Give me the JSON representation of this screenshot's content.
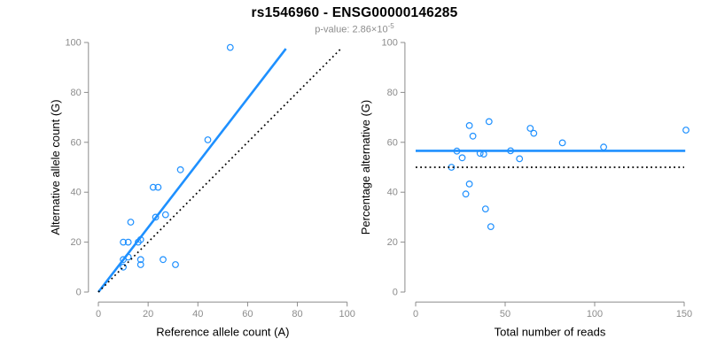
{
  "header": {
    "title": "rs1546960 - ENSG00000146285",
    "pvalue_label": "p-value:",
    "pvalue_mantissa": "2.86",
    "pvalue_times": "×10",
    "pvalue_exponent": "-5"
  },
  "colors": {
    "point_blue": "#1E90FF",
    "line_blue": "#1E90FF",
    "dotted_black": "#000000",
    "axis_gray": "#8C8C8C",
    "tick_label_gray": "#8C8C8C",
    "axis_title_black": "#000000"
  },
  "chart_data": [
    {
      "type": "scatter",
      "panel": "left",
      "xlabel": "Reference allele count (A)",
      "ylabel": "Alternative allele count (G)",
      "xlim": [
        0,
        100
      ],
      "ylim": [
        0,
        100
      ],
      "xticks": [
        0,
        20,
        40,
        60,
        80,
        100
      ],
      "yticks": [
        0,
        20,
        40,
        60,
        80,
        100
      ],
      "grid": false,
      "legend": "none",
      "points": [
        [
          53,
          98
        ],
        [
          44,
          61
        ],
        [
          33,
          49
        ],
        [
          24,
          42
        ],
        [
          22,
          42
        ],
        [
          27,
          31
        ],
        [
          23,
          30
        ],
        [
          13,
          28
        ],
        [
          17,
          21
        ],
        [
          16,
          20
        ],
        [
          12,
          20
        ],
        [
          10,
          20
        ],
        [
          12,
          14
        ],
        [
          10,
          13
        ],
        [
          17,
          13
        ],
        [
          17,
          11
        ],
        [
          26,
          13
        ],
        [
          31,
          11
        ],
        [
          10,
          10
        ]
      ],
      "lines": [
        {
          "kind": "fit-line",
          "x1": 0,
          "y1": 0,
          "x2": 75.4,
          "y2": 97.5,
          "style": "solid",
          "color": "blue"
        },
        {
          "kind": "identity-line",
          "x1": 0,
          "y1": 0,
          "x2": 97.4,
          "y2": 97.4,
          "style": "dotted",
          "color": "black"
        }
      ]
    },
    {
      "type": "scatter",
      "panel": "right",
      "xlabel": "Total number of reads",
      "ylabel": "Percentage alternative (G)",
      "xlim": [
        0,
        150
      ],
      "ylim": [
        0,
        100
      ],
      "xticks": [
        0,
        50,
        100,
        150
      ],
      "yticks": [
        0,
        20,
        40,
        60,
        80,
        100
      ],
      "grid": false,
      "legend": "none",
      "points": [
        [
          151,
          64.9
        ],
        [
          105,
          58.1
        ],
        [
          82,
          59.8
        ],
        [
          66,
          63.6
        ],
        [
          64,
          65.6
        ],
        [
          58,
          53.4
        ],
        [
          53,
          56.6
        ],
        [
          41,
          68.3
        ],
        [
          38,
          55.3
        ],
        [
          36,
          55.6
        ],
        [
          32,
          62.5
        ],
        [
          30,
          66.7
        ],
        [
          30,
          43.3
        ],
        [
          28,
          39.3
        ],
        [
          26,
          53.8
        ],
        [
          23,
          56.5
        ],
        [
          20,
          50
        ],
        [
          39,
          33.3
        ],
        [
          42,
          26.2
        ]
      ],
      "lines": [
        {
          "kind": "fit-line",
          "x1": 0,
          "y1": 56.6,
          "x2": 150.6,
          "y2": 56.6,
          "style": "solid",
          "color": "blue"
        },
        {
          "kind": "null-line",
          "x1": 0,
          "y1": 50,
          "x2": 150,
          "y2": 50,
          "style": "dotted",
          "color": "black"
        }
      ]
    }
  ]
}
